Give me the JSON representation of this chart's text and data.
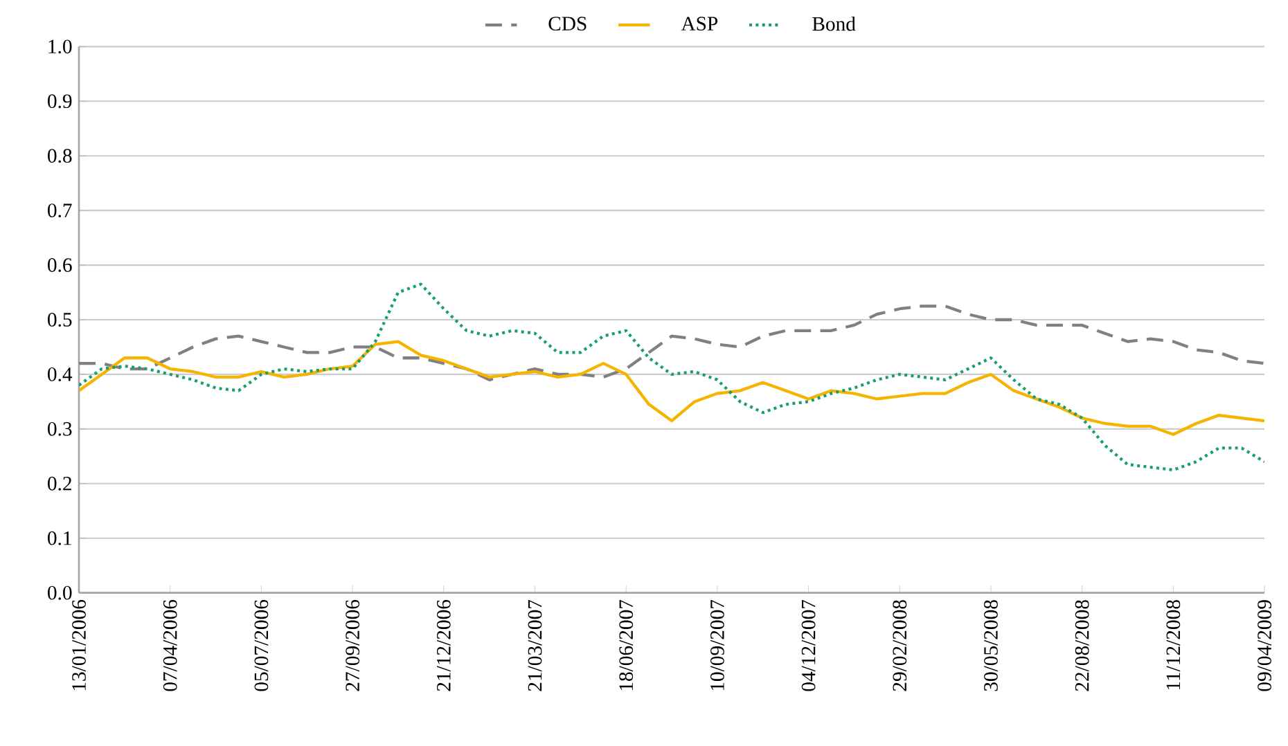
{
  "chart_data": {
    "type": "line",
    "categories": [
      "13/01/2006",
      null,
      null,
      null,
      "07/04/2006",
      null,
      null,
      null,
      "05/07/2006",
      null,
      null,
      null,
      "27/09/2006",
      null,
      null,
      null,
      "21/12/2006",
      null,
      null,
      null,
      "21/03/2007",
      null,
      null,
      null,
      "18/06/2007",
      null,
      null,
      null,
      "10/09/2007",
      null,
      null,
      null,
      "04/12/2007",
      null,
      null,
      null,
      "29/02/2008",
      null,
      null,
      null,
      "30/05/2008",
      null,
      null,
      null,
      "22/08/2008",
      null,
      null,
      null,
      "11/12/2008",
      null,
      null,
      null,
      "09/04/2009"
    ],
    "series": [
      {
        "name": "CDS",
        "color": "#808080",
        "line_style": "dashed",
        "values": [
          0.42,
          0.42,
          0.41,
          0.41,
          0.43,
          0.45,
          0.465,
          0.47,
          0.46,
          0.45,
          0.44,
          0.44,
          0.45,
          0.45,
          0.43,
          0.43,
          0.42,
          0.41,
          0.39,
          0.4,
          0.41,
          0.4,
          0.4,
          0.395,
          0.41,
          0.44,
          0.47,
          0.465,
          0.455,
          0.45,
          0.47,
          0.48,
          0.48,
          0.48,
          0.49,
          0.51,
          0.52,
          0.525,
          0.525,
          0.51,
          0.5,
          0.5,
          0.49,
          0.49,
          0.49,
          0.475,
          0.46,
          0.465,
          0.46,
          0.445,
          0.44,
          0.425,
          0.42
        ]
      },
      {
        "name": "ASP",
        "color": "#f5b400",
        "line_style": "solid",
        "values": [
          0.37,
          0.4,
          0.43,
          0.43,
          0.41,
          0.405,
          0.395,
          0.395,
          0.405,
          0.395,
          0.4,
          0.41,
          0.415,
          0.455,
          0.46,
          0.435,
          0.425,
          0.41,
          0.395,
          0.4,
          0.405,
          0.395,
          0.4,
          0.42,
          0.4,
          0.345,
          0.315,
          0.35,
          0.365,
          0.37,
          0.385,
          0.37,
          0.355,
          0.37,
          0.365,
          0.355,
          0.36,
          0.365,
          0.365,
          0.385,
          0.4,
          0.37,
          0.355,
          0.34,
          0.32,
          0.31,
          0.305,
          0.305,
          0.29,
          0.31,
          0.325,
          0.32,
          0.315
        ]
      },
      {
        "name": "Bond",
        "color": "#1a9e6e",
        "line_style": "dotted",
        "values": [
          0.38,
          0.41,
          0.415,
          0.41,
          0.4,
          0.39,
          0.375,
          0.37,
          0.4,
          0.41,
          0.405,
          0.41,
          0.41,
          0.46,
          0.55,
          0.565,
          0.52,
          0.48,
          0.47,
          0.48,
          0.475,
          0.44,
          0.44,
          0.47,
          0.48,
          0.43,
          0.4,
          0.405,
          0.39,
          0.35,
          0.33,
          0.345,
          0.35,
          0.365,
          0.375,
          0.39,
          0.4,
          0.395,
          0.39,
          0.41,
          0.43,
          0.39,
          0.355,
          0.345,
          0.32,
          0.27,
          0.235,
          0.23,
          0.225,
          0.24,
          0.265,
          0.265,
          0.24
        ]
      }
    ],
    "ylim": [
      0,
      1
    ],
    "yticks": [
      {
        "value": 0,
        "label": "0.0"
      },
      {
        "value": 0.1,
        "label": "0.1"
      },
      {
        "value": 0.2,
        "label": "0.2"
      },
      {
        "value": 0.3,
        "label": "0.3"
      },
      {
        "value": 0.4,
        "label": "0.4"
      },
      {
        "value": 0.5,
        "label": "0.5"
      },
      {
        "value": 0.6,
        "label": "0.6"
      },
      {
        "value": 0.7,
        "label": "0.7"
      },
      {
        "value": 0.8,
        "label": "0.8"
      },
      {
        "value": 0.9,
        "label": "0.9"
      },
      {
        "value": 1,
        "label": "1.0"
      }
    ],
    "grid": "y",
    "legend": "top",
    "marker": "none"
  }
}
